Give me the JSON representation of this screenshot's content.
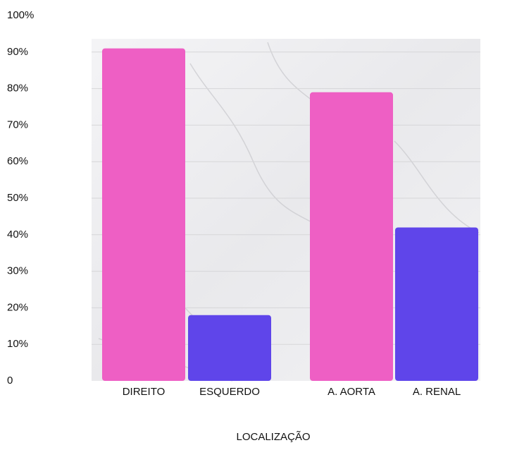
{
  "chart_data": {
    "type": "bar",
    "x_label": "LOCALIZAÇÃO",
    "categories": [
      "DIREITO",
      "ESQUERDO",
      "A. AORTA",
      "A. RENAL"
    ],
    "values": [
      91,
      18,
      79,
      42
    ],
    "colors": [
      "#ee5fc4",
      "#5f45ea",
      "#ee5fc4",
      "#5f45ea"
    ],
    "ylim": [
      0,
      100
    ],
    "yticks": [
      0,
      {
        "value": 10,
        "label": "10%"
      },
      {
        "value": 20,
        "label": "20%"
      },
      {
        "value": 30,
        "label": "30%"
      },
      {
        "value": 40,
        "label": "40%"
      },
      {
        "value": 50,
        "label": "50%"
      },
      {
        "value": 60,
        "label": "60%"
      },
      {
        "value": 70,
        "label": "70%"
      },
      {
        "value": 80,
        "label": "80%"
      },
      {
        "value": 90,
        "label": "90%"
      },
      {
        "value": 100,
        "label": "100%"
      }
    ],
    "grid": true
  }
}
